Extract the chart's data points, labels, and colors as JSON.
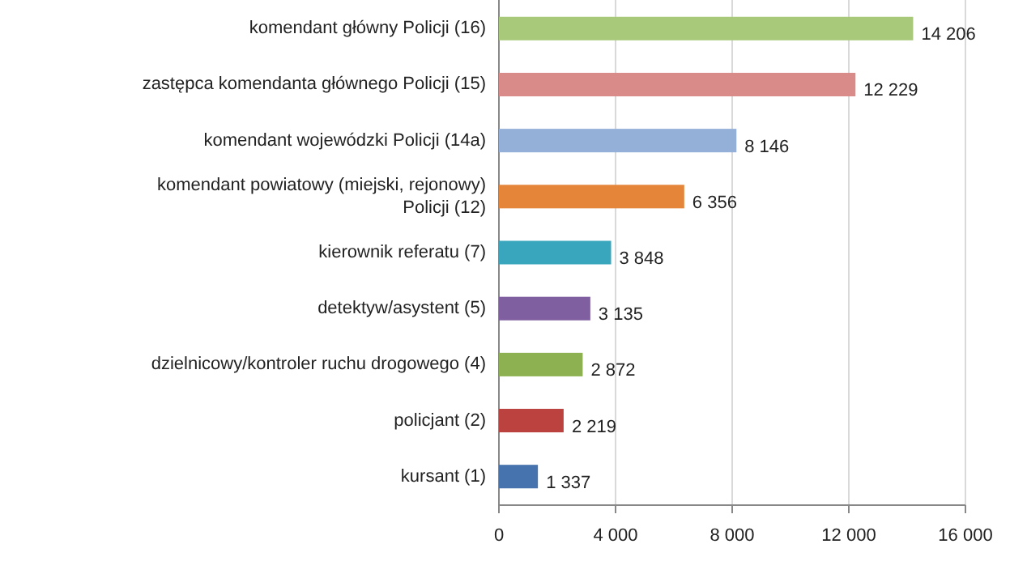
{
  "chart_data": {
    "type": "bar",
    "orientation": "horizontal",
    "categories": [
      "komendant główny Policji (16)",
      "zastępca komendanta głównego Policji (15)",
      "komendant wojewódzki Policji (14a)",
      "komendant powiatowy (miejski, rejonowy) Policji (12)",
      "kierownik referatu (7)",
      "detektyw/asystent (5)",
      "dzielnicowy/kontroler ruchu drogowego (4)",
      "policjant (2)",
      "kursant (1)"
    ],
    "values": [
      14206,
      12229,
      8146,
      6356,
      3848,
      3135,
      2872,
      2219,
      1337
    ],
    "colors": [
      "#a9c97a",
      "#d98b8a",
      "#94afd8",
      "#e5853a",
      "#3aa6bd",
      "#7f5fa0",
      "#8db150",
      "#bb423f",
      "#4673ad"
    ],
    "value_labels": [
      "14 206",
      "12 229",
      "8 146",
      "6 356",
      "3 848",
      "3 135",
      "2 872",
      "2 219",
      "1 337"
    ],
    "xlim": [
      0,
      16000
    ],
    "xticks": [
      0,
      {
        "value": 4000,
        "label": "4 000"
      },
      {
        "value": 8000,
        "label": "8 000"
      },
      {
        "value": 12000,
        "label": "12 000"
      },
      {
        "value": 16000,
        "label": "16 000"
      }
    ],
    "grid": "x"
  }
}
